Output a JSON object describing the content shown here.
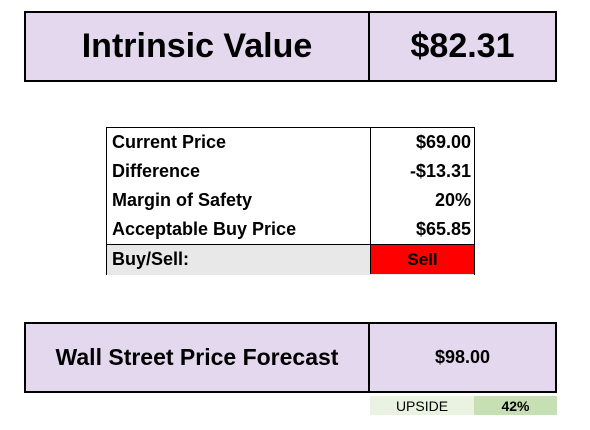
{
  "intrinsic": {
    "label": "Intrinsic Value",
    "value": "$82.31"
  },
  "valuation_table": {
    "rows": [
      {
        "label": "Current Price",
        "value": "$69.00"
      },
      {
        "label": "Difference",
        "value": "-$13.31"
      },
      {
        "label": "Margin of Safety",
        "value": "20%"
      },
      {
        "label": "Acceptable Buy Price",
        "value": "$65.85"
      }
    ],
    "buy_sell": {
      "label": "Buy/Sell:",
      "value": "Sell"
    }
  },
  "forecast": {
    "label": "Wall Street Price Forecast",
    "value": "$98.00",
    "upside_label": "UPSIDE",
    "upside_value": "42%"
  },
  "colors": {
    "box_fill": "#e4d8ee",
    "sell_red": "#ff0000",
    "upside_label_fill": "#eaf3e2",
    "upside_value_fill": "#c6e0b4",
    "buy_sell_row_fill": "#e8e8e8"
  }
}
